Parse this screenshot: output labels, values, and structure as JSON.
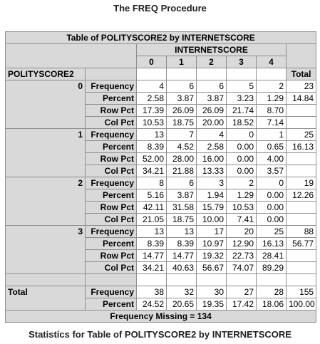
{
  "title": "The FREQ Procedure",
  "table": {
    "caption": "Table of POLITYSCORE2 by INTERNETSCORE",
    "col_var": "INTERNETSCORE",
    "row_var": "POLITYSCORE2",
    "col_values": [
      "0",
      "1",
      "2",
      "3",
      "4"
    ],
    "total_label": "Total",
    "stat_labels": {
      "frequency": "Frequency",
      "percent": "Percent",
      "row_pct": "Row Pct",
      "col_pct": "Col Pct"
    },
    "rows": [
      {
        "label": "0",
        "frequency": [
          "4",
          "6",
          "6",
          "5",
          "2"
        ],
        "frequency_total": "23",
        "percent": [
          "2.58",
          "3.87",
          "3.87",
          "3.23",
          "1.29"
        ],
        "percent_total": "14.84",
        "row_pct": [
          "17.39",
          "26.09",
          "26.09",
          "21.74",
          "8.70"
        ],
        "col_pct": [
          "10.53",
          "18.75",
          "20.00",
          "18.52",
          "7.14"
        ]
      },
      {
        "label": "1",
        "frequency": [
          "13",
          "7",
          "4",
          "0",
          "1"
        ],
        "frequency_total": "25",
        "percent": [
          "8.39",
          "4.52",
          "2.58",
          "0.00",
          "0.65"
        ],
        "percent_total": "16.13",
        "row_pct": [
          "52.00",
          "28.00",
          "16.00",
          "0.00",
          "4.00"
        ],
        "col_pct": [
          "34.21",
          "21.88",
          "13.33",
          "0.00",
          "3.57"
        ]
      },
      {
        "label": "2",
        "frequency": [
          "8",
          "6",
          "3",
          "2",
          "0"
        ],
        "frequency_total": "19",
        "percent": [
          "5.16",
          "3.87",
          "1.94",
          "1.29",
          "0.00"
        ],
        "percent_total": "12.26",
        "row_pct": [
          "42.11",
          "31.58",
          "15.79",
          "10.53",
          "0.00"
        ],
        "col_pct": [
          "21.05",
          "18.75",
          "10.00",
          "7.41",
          "0.00"
        ]
      },
      {
        "label": "3",
        "frequency": [
          "13",
          "13",
          "17",
          "20",
          "25"
        ],
        "frequency_total": "88",
        "percent": [
          "8.39",
          "8.39",
          "10.97",
          "12.90",
          "16.13"
        ],
        "percent_total": "56.77",
        "row_pct": [
          "14.77",
          "14.77",
          "19.32",
          "22.73",
          "28.41"
        ],
        "col_pct": [
          "34.21",
          "40.63",
          "56.67",
          "74.07",
          "89.29"
        ]
      }
    ],
    "total_row": {
      "label": "Total",
      "frequency": [
        "38",
        "32",
        "30",
        "27",
        "28"
      ],
      "frequency_total": "155",
      "percent": [
        "24.52",
        "20.65",
        "19.35",
        "17.42",
        "18.06"
      ],
      "percent_total": "100.00"
    },
    "footer": "Frequency Missing = 134"
  },
  "bottom_title": "Statistics for Table of POLITYSCORE2 by INTERNETSCORE"
}
